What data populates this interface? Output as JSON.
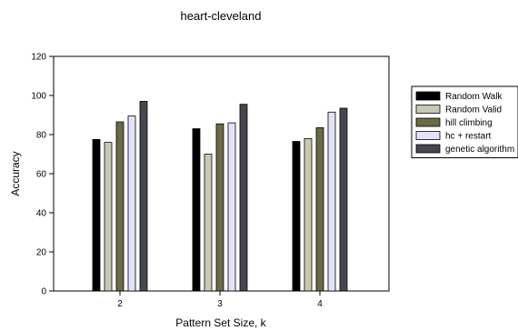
{
  "chart_data": {
    "type": "bar",
    "title": "heart-cleveland",
    "xlabel": "Pattern Set Size, k",
    "ylabel": "Accuracy",
    "categories": [
      "2",
      "3",
      "4"
    ],
    "ylim": [
      0,
      120
    ],
    "yticks": [
      "0",
      "20",
      "40",
      "60",
      "80",
      "100",
      "120"
    ],
    "grid": false,
    "legend_position": "right",
    "series": [
      {
        "name": "Random Walk",
        "color": "#000000",
        "values": [
          77.5,
          83,
          76.5
        ]
      },
      {
        "name": "Random Valid",
        "color": "#c8c9b2",
        "values": [
          76,
          70,
          78
        ]
      },
      {
        "name": "hill climbing",
        "color": "#6b6a48",
        "values": [
          86.5,
          85.5,
          83.5
        ]
      },
      {
        "name": "hc + restart",
        "color": "#e2e2fb",
        "values": [
          89.5,
          86,
          91.5
        ]
      },
      {
        "name": "genetic algorithm",
        "color": "#464650",
        "values": [
          97,
          95.5,
          93.5
        ]
      }
    ]
  }
}
